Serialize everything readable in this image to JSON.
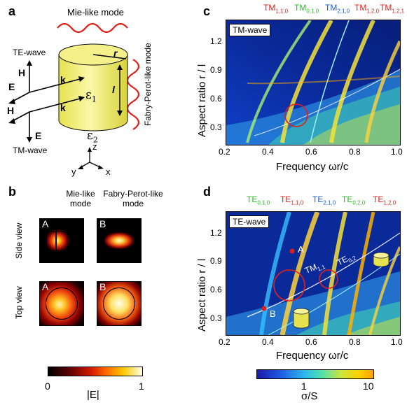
{
  "panels": {
    "a": {
      "label": "a",
      "mie_mode": "Mie-like mode",
      "fp_mode": "Fabry-Perot-like mode",
      "te_wave": "TE-wave",
      "tm_wave": "TM-wave",
      "H1": "H",
      "E1": "E",
      "k1": "k",
      "k2": "k",
      "H2": "H",
      "E2": "E",
      "r": "r",
      "l": "l",
      "eps1": "ε",
      "eps1_sub": "1",
      "eps2": "ε",
      "eps2_sub": "2",
      "z": "z",
      "y": "y",
      "x": "x"
    },
    "b": {
      "label": "b",
      "col1": [
        "Mie-like",
        "mode"
      ],
      "col2": [
        "Fabry-Perot-like",
        "mode"
      ],
      "row1": "Side view",
      "row2": "Top view",
      "A1": "A",
      "B1": "B",
      "A2": "A",
      "B2": "B",
      "cbar_min": "0",
      "cbar_max": "1",
      "cbar_label": "|E|"
    },
    "c": {
      "label": "c",
      "wave_tag": "TM-wave",
      "modes": [
        {
          "name": "TM",
          "sub": "1,1,0",
          "color": "red"
        },
        {
          "name": "TM",
          "sub": "0,1,0",
          "color": "green"
        },
        {
          "name": "TM",
          "sub": "2,1,0",
          "color": "blue"
        },
        {
          "name": "TM",
          "sub": "1,2,0",
          "color": "red"
        },
        {
          "name": "TM",
          "sub": "1,2,1",
          "color": "red"
        }
      ],
      "xlabel": "Frequency ωr/c",
      "ylabel": "Aspect ratio r / l",
      "xticks": [
        "0.2",
        "0.4",
        "0.6",
        "0.8",
        "1.0"
      ],
      "yticks": [
        "1.2",
        "0.9",
        "0.6",
        "0.3"
      ]
    },
    "d": {
      "label": "d",
      "wave_tag": "TE-wave",
      "modes": [
        {
          "name": "TE",
          "sub": "0,1,0",
          "color": "green"
        },
        {
          "name": "TE",
          "sub": "1,1,0",
          "color": "red"
        },
        {
          "name": "TE",
          "sub": "2,1,0",
          "color": "blue"
        },
        {
          "name": "TE",
          "sub": "0,2,0",
          "color": "green"
        },
        {
          "name": "TE",
          "sub": "1,2,0",
          "color": "red"
        }
      ],
      "inline_tm": "TM",
      "inline_tm_sub": "1,1",
      "inline_te": "TE",
      "inline_te_sub": "0,2",
      "pointA": "A",
      "pointB": "B",
      "xlabel": "Frequency ωr/c",
      "ylabel": "Aspect ratio r / l",
      "xticks": [
        "0.2",
        "0.4",
        "0.6",
        "0.8",
        "1.0"
      ],
      "yticks": [
        "1.2",
        "0.9",
        "0.6",
        "0.3"
      ],
      "cbar_ticks": [
        "1",
        "10"
      ],
      "cbar_label": "σ/S"
    }
  },
  "colors": {
    "mode_red": "#e0201b",
    "mode_green": "#2eb82e",
    "mode_blue": "#1e5ad6",
    "cylinder": "#f3ef6a"
  }
}
